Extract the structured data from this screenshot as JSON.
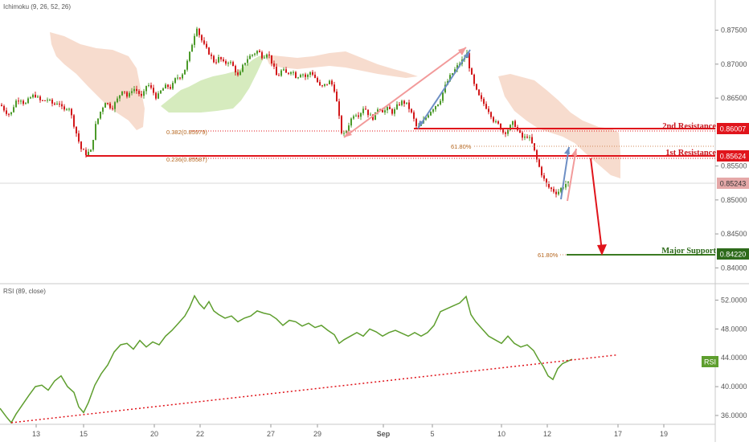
{
  "main_indicator": {
    "label": "Ichimoku (9, 26, 52, 26)"
  },
  "rsi_indicator": {
    "label": "RSI (89, close)",
    "badge": "RSI"
  },
  "colors": {
    "candle_up": "#4c9a2a",
    "candle_down": "#d2191b",
    "cloud": "#f3cbb8",
    "cloud_bull": "#c8e6a9",
    "resistance": "#e0141b",
    "support": "#3b7a22",
    "rsi_line": "#5e9e2e",
    "trendline": "#e0141b",
    "price_badge_grey": "#e5a8a8",
    "accent_pink": "#f29a9a",
    "accent_blue": "#6d8ec4"
  },
  "levels": {
    "second_resistance": {
      "label": "2nd Resistance",
      "price": "0.86007"
    },
    "first_resistance": {
      "label": "1st Resistance",
      "price": "0.85624"
    },
    "current_price": {
      "price": "0.85243"
    },
    "major_support": {
      "label": "Major Support",
      "price": "0.84220"
    }
  },
  "fib_labels": {
    "fib_382": "0.382(0.85979)",
    "fib_236": "0.236(0.85587)",
    "fib_618_upper": "61.80%",
    "fib_618_lower": "61.80%"
  },
  "price_axis": [
    "0.87500",
    "0.87000",
    "0.86500",
    "0.85500",
    "0.85000",
    "0.84500",
    "0.84000"
  ],
  "rsi_axis": [
    "52.0000",
    "48.0000",
    "44.0000",
    "40.0000",
    "36.0000"
  ],
  "time_axis": [
    "13",
    "15",
    "20",
    "22",
    "27",
    "29",
    "Sep",
    "5",
    "10",
    "12",
    "17",
    "19"
  ],
  "chart_data": {
    "type": "candlestick",
    "instrument_price_range": [
      0.8385,
      0.8785
    ],
    "rsi_range": [
      35.0,
      53.5
    ],
    "time_labels": [
      "13",
      "15",
      "20",
      "22",
      "27",
      "29",
      "Sep",
      "5",
      "10",
      "12",
      "17",
      "19"
    ],
    "close_path": [
      [
        0,
        0.864
      ],
      [
        6,
        0.863
      ],
      [
        12,
        0.8625
      ],
      [
        18,
        0.8645
      ],
      [
        24,
        0.865
      ],
      [
        30,
        0.864
      ],
      [
        36,
        0.865
      ],
      [
        42,
        0.8655
      ],
      [
        50,
        0.8645
      ],
      [
        58,
        0.8648
      ],
      [
        66,
        0.864
      ],
      [
        72,
        0.8645
      ],
      [
        78,
        0.863
      ],
      [
        84,
        0.864
      ],
      [
        90,
        0.8615
      ],
      [
        96,
        0.859
      ],
      [
        100,
        0.8575
      ],
      [
        106,
        0.8568
      ],
      [
        112,
        0.8572
      ],
      [
        118,
        0.861
      ],
      [
        124,
        0.863
      ],
      [
        130,
        0.8645
      ],
      [
        138,
        0.8635
      ],
      [
        146,
        0.865
      ],
      [
        152,
        0.8665
      ],
      [
        158,
        0.865
      ],
      [
        164,
        0.8665
      ],
      [
        170,
        0.866
      ],
      [
        176,
        0.865
      ],
      [
        182,
        0.8672
      ],
      [
        188,
        0.8662
      ],
      [
        194,
        0.865
      ],
      [
        200,
        0.8662
      ],
      [
        206,
        0.8668
      ],
      [
        212,
        0.8665
      ],
      [
        218,
        0.868
      ],
      [
        224,
        0.8682
      ],
      [
        230,
        0.8695
      ],
      [
        236,
        0.872
      ],
      [
        240,
        0.874
      ],
      [
        244,
        0.8755
      ],
      [
        248,
        0.874
      ],
      [
        254,
        0.8725
      ],
      [
        260,
        0.8715
      ],
      [
        266,
        0.8702
      ],
      [
        272,
        0.871
      ],
      [
        278,
        0.87
      ],
      [
        284,
        0.8705
      ],
      [
        290,
        0.8695
      ],
      [
        296,
        0.868
      ],
      [
        302,
        0.87
      ],
      [
        308,
        0.871
      ],
      [
        314,
        0.8715
      ],
      [
        320,
        0.872
      ],
      [
        326,
        0.871
      ],
      [
        332,
        0.8718
      ],
      [
        338,
        0.87
      ],
      [
        344,
        0.868
      ],
      [
        350,
        0.8692
      ],
      [
        356,
        0.8685
      ],
      [
        362,
        0.8692
      ],
      [
        368,
        0.868
      ],
      [
        374,
        0.8688
      ],
      [
        380,
        0.868
      ],
      [
        386,
        0.869
      ],
      [
        392,
        0.8678
      ],
      [
        398,
        0.8665
      ],
      [
        404,
        0.867
      ],
      [
        410,
        0.8675
      ],
      [
        416,
        0.866
      ],
      [
        420,
        0.8628
      ],
      [
        424,
        0.86
      ],
      [
        428,
        0.8595
      ],
      [
        434,
        0.8615
      ],
      [
        440,
        0.8628
      ],
      [
        446,
        0.8625
      ],
      [
        452,
        0.8638
      ],
      [
        458,
        0.8625
      ],
      [
        464,
        0.862
      ],
      [
        470,
        0.8638
      ],
      [
        476,
        0.863
      ],
      [
        482,
        0.8635
      ],
      [
        488,
        0.8628
      ],
      [
        494,
        0.864
      ],
      [
        500,
        0.8645
      ],
      [
        506,
        0.864
      ],
      [
        512,
        0.8625
      ],
      [
        518,
        0.8605
      ],
      [
        522,
        0.861
      ],
      [
        528,
        0.862
      ],
      [
        534,
        0.863
      ],
      [
        540,
        0.8638
      ],
      [
        546,
        0.8645
      ],
      [
        552,
        0.8665
      ],
      [
        558,
        0.868
      ],
      [
        564,
        0.869
      ],
      [
        570,
        0.87
      ],
      [
        576,
        0.8708
      ],
      [
        580,
        0.8715
      ],
      [
        584,
        0.869
      ],
      [
        590,
        0.8665
      ],
      [
        596,
        0.865
      ],
      [
        602,
        0.864
      ],
      [
        608,
        0.863
      ],
      [
        614,
        0.8615
      ],
      [
        620,
        0.861
      ],
      [
        626,
        0.8598
      ],
      [
        632,
        0.8605
      ],
      [
        638,
        0.8615
      ],
      [
        644,
        0.86
      ],
      [
        650,
        0.859
      ],
      [
        656,
        0.8595
      ],
      [
        662,
        0.858
      ],
      [
        668,
        0.8555
      ],
      [
        674,
        0.8535
      ],
      [
        680,
        0.852
      ],
      [
        686,
        0.8515
      ],
      [
        692,
        0.851
      ],
      [
        698,
        0.8518
      ],
      [
        704,
        0.8525
      ],
      [
        710,
        0.8524
      ]
    ],
    "rsi_path": [
      [
        0,
        37.0
      ],
      [
        8,
        35.8
      ],
      [
        14,
        35.0
      ],
      [
        20,
        36.2
      ],
      [
        28,
        37.5
      ],
      [
        36,
        38.8
      ],
      [
        44,
        40.0
      ],
      [
        52,
        40.2
      ],
      [
        60,
        39.5
      ],
      [
        68,
        40.8
      ],
      [
        76,
        41.5
      ],
      [
        84,
        40.0
      ],
      [
        92,
        39.2
      ],
      [
        98,
        37.2
      ],
      [
        104,
        36.4
      ],
      [
        110,
        37.8
      ],
      [
        118,
        40.2
      ],
      [
        126,
        41.8
      ],
      [
        134,
        43.0
      ],
      [
        142,
        44.8
      ],
      [
        150,
        45.8
      ],
      [
        158,
        46.0
      ],
      [
        166,
        45.2
      ],
      [
        174,
        46.4
      ],
      [
        182,
        45.5
      ],
      [
        190,
        46.2
      ],
      [
        198,
        45.8
      ],
      [
        206,
        47.0
      ],
      [
        214,
        47.8
      ],
      [
        222,
        48.8
      ],
      [
        230,
        49.8
      ],
      [
        236,
        51.0
      ],
      [
        242,
        52.6
      ],
      [
        248,
        51.5
      ],
      [
        254,
        50.8
      ],
      [
        260,
        51.8
      ],
      [
        266,
        50.5
      ],
      [
        272,
        50.0
      ],
      [
        280,
        49.5
      ],
      [
        288,
        49.8
      ],
      [
        296,
        49.0
      ],
      [
        304,
        49.5
      ],
      [
        312,
        49.8
      ],
      [
        320,
        50.5
      ],
      [
        328,
        50.2
      ],
      [
        336,
        50.0
      ],
      [
        344,
        49.4
      ],
      [
        352,
        48.5
      ],
      [
        360,
        49.2
      ],
      [
        368,
        49.0
      ],
      [
        376,
        48.4
      ],
      [
        384,
        48.8
      ],
      [
        392,
        48.2
      ],
      [
        400,
        48.5
      ],
      [
        408,
        47.8
      ],
      [
        416,
        47.2
      ],
      [
        422,
        46.0
      ],
      [
        428,
        46.5
      ],
      [
        436,
        47.0
      ],
      [
        444,
        47.5
      ],
      [
        452,
        47.0
      ],
      [
        460,
        48.0
      ],
      [
        468,
        47.6
      ],
      [
        476,
        47.0
      ],
      [
        484,
        47.5
      ],
      [
        492,
        47.8
      ],
      [
        500,
        47.4
      ],
      [
        508,
        47.0
      ],
      [
        516,
        47.5
      ],
      [
        524,
        47.0
      ],
      [
        532,
        47.5
      ],
      [
        540,
        48.5
      ],
      [
        548,
        50.4
      ],
      [
        556,
        50.8
      ],
      [
        564,
        51.2
      ],
      [
        572,
        51.6
      ],
      [
        580,
        52.5
      ],
      [
        586,
        50.0
      ],
      [
        592,
        49.0
      ],
      [
        600,
        48.0
      ],
      [
        608,
        47.0
      ],
      [
        616,
        46.5
      ],
      [
        624,
        46.0
      ],
      [
        632,
        47.0
      ],
      [
        640,
        46.0
      ],
      [
        648,
        45.5
      ],
      [
        656,
        45.8
      ],
      [
        664,
        45.0
      ],
      [
        670,
        43.8
      ],
      [
        676,
        42.8
      ],
      [
        682,
        41.5
      ],
      [
        688,
        41.0
      ],
      [
        694,
        42.5
      ],
      [
        700,
        43.2
      ],
      [
        706,
        43.5
      ],
      [
        712,
        43.8
      ]
    ],
    "rsi_trendline": [
      [
        14,
        35.0
      ],
      [
        768,
        44.4
      ]
    ]
  }
}
